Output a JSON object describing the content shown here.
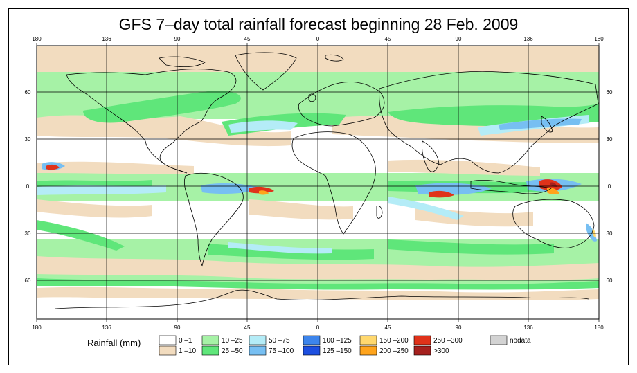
{
  "title": "GFS 7–day total rainfall forecast beginning 28 Feb. 2009",
  "map": {
    "lon_ticks": [
      "180",
      "136",
      "90",
      "45",
      "0",
      "45",
      "90",
      "136",
      "180"
    ],
    "lat_ticks": [
      "60",
      "30",
      "0",
      "30",
      "60"
    ]
  },
  "colors": {
    "c0_1": "#ffffff",
    "c1_10": "#f2dcbf",
    "c10_25": "#a6f2a6",
    "c25_50": "#5fe67a",
    "c50_75": "#b4ecf7",
    "c75_100": "#77bff2",
    "c100_125": "#3d85ec",
    "c125_150": "#1d4fe0",
    "c150_200": "#ffd86e",
    "c200_250": "#ffa41c",
    "c250_300": "#e0321a",
    "c300": "#a5201e",
    "nodata": "#d3d3d3",
    "coast": "#000000",
    "grid": "#000000"
  },
  "legend": {
    "title": "Rainfall (mm)",
    "items": [
      {
        "label": "0 –1",
        "color": "#ffffff"
      },
      {
        "label": "1 –10",
        "color": "#f2dcbf"
      },
      {
        "label": "10 –25",
        "color": "#a6f2a6"
      },
      {
        "label": "25 –50",
        "color": "#5fe67a"
      },
      {
        "label": "50 –75",
        "color": "#b4ecf7"
      },
      {
        "label": "75 –100",
        "color": "#77bff2"
      },
      {
        "label": "100 –125",
        "color": "#3d85ec"
      },
      {
        "label": "125 –150",
        "color": "#1d4fe0"
      },
      {
        "label": "150 –200",
        "color": "#ffd86e"
      },
      {
        "label": "200 –250",
        "color": "#ffa41c"
      },
      {
        "label": "250 –300",
        "color": "#e0321a"
      },
      {
        "label": ">300",
        "color": "#a5201e"
      },
      {
        "label": "nodata",
        "color": "#d3d3d3"
      }
    ]
  }
}
